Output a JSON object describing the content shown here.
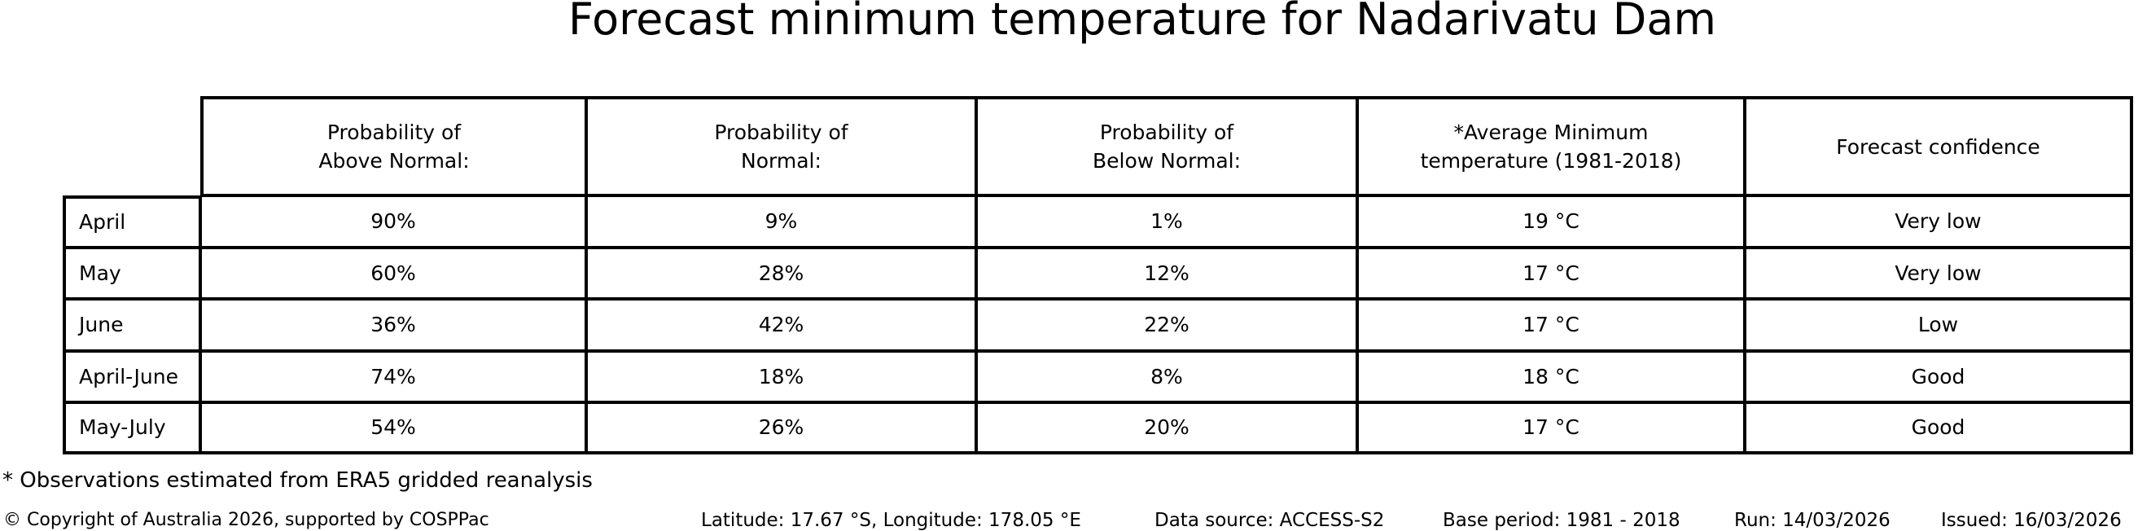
{
  "title": "Forecast minimum temperature for Nadarivatu Dam",
  "table": {
    "headers": {
      "above": "Probability of\nAbove Normal:",
      "normal": "Probability of\nNormal:",
      "below": "Probability of\nBelow Normal:",
      "avg_temp": "*Average Minimum\ntemperature (1981-2018)",
      "confidence": "Forecast confidence"
    },
    "rows": [
      {
        "label": "April",
        "above": "90%",
        "normal": "9%",
        "below": "1%",
        "avg_temp": "19 °C",
        "confidence": "Very low"
      },
      {
        "label": "May",
        "above": "60%",
        "normal": "28%",
        "below": "12%",
        "avg_temp": "17 °C",
        "confidence": "Very low"
      },
      {
        "label": "June",
        "above": "36%",
        "normal": "42%",
        "below": "22%",
        "avg_temp": "17 °C",
        "confidence": "Low"
      },
      {
        "label": "April-June",
        "above": "74%",
        "normal": "18%",
        "below": "8%",
        "avg_temp": "18 °C",
        "confidence": "Good"
      },
      {
        "label": "May-July",
        "above": "54%",
        "normal": "26%",
        "below": "20%",
        "avg_temp": "17 °C",
        "confidence": "Good"
      }
    ]
  },
  "footnote": "* Observations estimated from ERA5 gridded reanalysis",
  "footer": {
    "copyright": "© Copyright of Australia 2026, supported by COSPPac",
    "location": "Latitude: 17.67 °S, Longitude: 178.05 °E",
    "data_source": "Data source: ACCESS-S2",
    "base_period": "Base period: 1981 - 2018",
    "run": "Run: 14/03/2026",
    "issued": "Issued: 16/03/2026"
  },
  "colors": {
    "text": "#000000",
    "background": "#ffffff",
    "border": "#000000"
  },
  "chart_data": {
    "type": "table",
    "title": "Forecast minimum temperature for Nadarivatu Dam",
    "columns": [
      "",
      "Probability of Above Normal:",
      "Probability of Normal:",
      "Probability of Below Normal:",
      "*Average Minimum temperature (1981-2018)",
      "Forecast confidence"
    ],
    "rows": [
      [
        "April",
        "90%",
        "9%",
        "1%",
        "19 °C",
        "Very low"
      ],
      [
        "May",
        "60%",
        "28%",
        "12%",
        "17 °C",
        "Very low"
      ],
      [
        "June",
        "36%",
        "42%",
        "22%",
        "17 °C",
        "Low"
      ],
      [
        "April-June",
        "74%",
        "18%",
        "8%",
        "18 °C",
        "Good"
      ],
      [
        "May-July",
        "54%",
        "26%",
        "20%",
        "17 °C",
        "Good"
      ]
    ],
    "footnote": "* Observations estimated from ERA5 gridded reanalysis",
    "legend_position": "none",
    "grid": "table-borders"
  }
}
